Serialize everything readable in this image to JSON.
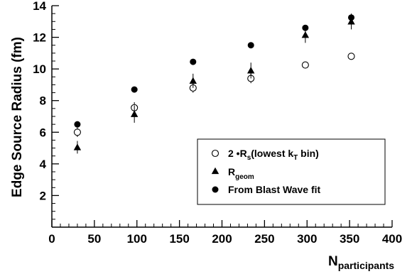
{
  "chart_data": {
    "type": "scatter",
    "title": "",
    "xlabel": {
      "main": "N",
      "sub": "participants"
    },
    "ylabel": "Edge Source Radius (fm)",
    "xlim": [
      0,
      400
    ],
    "ylim": [
      0,
      14
    ],
    "xticks": [
      "0",
      "50",
      "100",
      "150",
      "200",
      "250",
      "300",
      "350",
      "400"
    ],
    "yticks": [
      "2",
      "4",
      "6",
      "8",
      "10",
      "12",
      "14"
    ],
    "grid": false,
    "legend_position": "bottom-right",
    "series": [
      {
        "name": "2·R_s(lowest k_T bin)",
        "legend": {
          "prefix": "2 •R",
          "sub1": "s",
          "mid": "(lowest k",
          "sub2": "T",
          "suffix": " bin)"
        },
        "marker": "open-circle",
        "points": [
          {
            "x": 30,
            "y": 6.0,
            "yerr": 0.3
          },
          {
            "x": 97,
            "y": 7.55,
            "yerr": 0.35
          },
          {
            "x": 166,
            "y": 8.8,
            "yerr": 0.3
          },
          {
            "x": 234,
            "y": 9.4,
            "yerr": 0.3
          },
          {
            "x": 298,
            "y": 10.25,
            "yerr": 0.15
          },
          {
            "x": 352,
            "y": 10.8,
            "yerr": 0.15
          }
        ]
      },
      {
        "name": "R_geom",
        "legend": {
          "prefix": "R",
          "sub1": "geom"
        },
        "marker": "triangle",
        "points": [
          {
            "x": 30,
            "y": 5.05,
            "yerr": 0.4
          },
          {
            "x": 97,
            "y": 7.15,
            "yerr": 0.55
          },
          {
            "x": 166,
            "y": 9.25,
            "yerr": 0.45
          },
          {
            "x": 234,
            "y": 9.9,
            "yerr": 0.5
          },
          {
            "x": 298,
            "y": 12.15,
            "yerr": 0.5
          },
          {
            "x": 352,
            "y": 13.0,
            "yerr": 0.5
          }
        ]
      },
      {
        "name": "From Blast Wave fit",
        "legend": {
          "prefix": "From Blast Wave fit"
        },
        "marker": "filled-circle",
        "points": [
          {
            "x": 30,
            "y": 6.5
          },
          {
            "x": 97,
            "y": 8.7
          },
          {
            "x": 166,
            "y": 10.45
          },
          {
            "x": 234,
            "y": 11.5
          },
          {
            "x": 298,
            "y": 12.6
          },
          {
            "x": 352,
            "y": 13.25
          }
        ]
      }
    ]
  }
}
